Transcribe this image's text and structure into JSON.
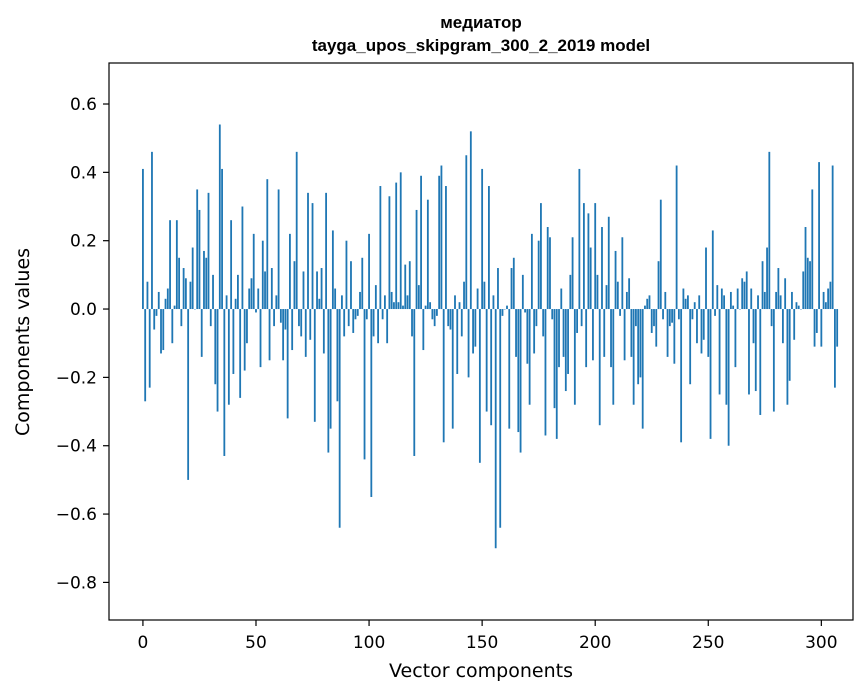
{
  "chart_data": {
    "type": "bar",
    "title_line1": "медиатор",
    "title_line2": "tayga_upos_skipgram_300_2_2019 model",
    "xlabel": "Vector components",
    "ylabel": "Components values",
    "xlim": [
      -15,
      314
    ],
    "ylim": [
      -0.91,
      0.72
    ],
    "xticks": [
      0,
      50,
      100,
      150,
      200,
      250,
      300
    ],
    "xtick_labels": [
      "0",
      "50",
      "100",
      "150",
      "200",
      "250",
      "300"
    ],
    "yticks": [
      -0.8,
      -0.6,
      -0.4,
      -0.2,
      0.0,
      0.2,
      0.4,
      0.6
    ],
    "ytick_labels": [
      "−0.8",
      "−0.6",
      "−0.4",
      "−0.2",
      "0.0",
      "0.2",
      "0.4",
      "0.6"
    ],
    "bar_color": "#1f77b4",
    "grid": false,
    "values": [
      0.41,
      -0.27,
      0.08,
      -0.23,
      0.46,
      -0.06,
      -0.02,
      0.05,
      -0.13,
      -0.12,
      0.03,
      0.06,
      0.26,
      -0.1,
      0.01,
      0.26,
      0.15,
      -0.05,
      0.12,
      0.09,
      -0.5,
      0.08,
      0.18,
      0.0,
      0.35,
      0.29,
      -0.14,
      0.17,
      0.15,
      0.34,
      -0.05,
      0.1,
      -0.22,
      -0.3,
      0.54,
      0.41,
      -0.43,
      0.04,
      -0.28,
      0.26,
      -0.19,
      0.03,
      0.1,
      -0.26,
      0.3,
      -0.18,
      -0.1,
      0.06,
      0.09,
      0.22,
      -0.01,
      0.06,
      -0.17,
      0.2,
      0.11,
      0.38,
      -0.15,
      0.12,
      -0.05,
      0.04,
      0.35,
      -0.04,
      -0.15,
      -0.06,
      -0.32,
      0.22,
      -0.12,
      0.14,
      0.46,
      -0.05,
      -0.08,
      0.11,
      -0.14,
      0.34,
      -0.09,
      0.31,
      -0.33,
      0.11,
      0.03,
      0.12,
      -0.13,
      0.34,
      -0.42,
      -0.35,
      0.23,
      0.06,
      -0.27,
      -0.64,
      0.04,
      -0.08,
      0.2,
      -0.05,
      0.14,
      -0.07,
      -0.03,
      -0.02,
      0.05,
      0.15,
      -0.44,
      -0.03,
      0.22,
      -0.55,
      -0.08,
      0.07,
      -0.1,
      0.36,
      -0.03,
      0.04,
      -0.1,
      0.33,
      0.05,
      0.02,
      0.37,
      0.02,
      0.4,
      0.01,
      0.13,
      0.04,
      0.14,
      -0.08,
      -0.43,
      0.29,
      0.07,
      0.39,
      -0.12,
      0.01,
      0.32,
      0.02,
      -0.03,
      -0.05,
      -0.02,
      0.39,
      0.42,
      -0.39,
      0.36,
      -0.05,
      -0.06,
      -0.35,
      0.04,
      -0.19,
      0.02,
      -0.08,
      0.08,
      0.45,
      -0.2,
      0.52,
      -0.13,
      -0.11,
      0.06,
      -0.45,
      0.41,
      0.08,
      -0.3,
      0.36,
      -0.34,
      0.04,
      -0.7,
      0.12,
      -0.64,
      -0.02,
      0.0,
      0.01,
      -0.35,
      0.12,
      0.15,
      -0.14,
      -0.36,
      -0.42,
      0.1,
      -0.01,
      -0.16,
      -0.28,
      0.22,
      -0.13,
      -0.05,
      0.2,
      0.31,
      -0.08,
      -0.37,
      0.24,
      0.21,
      -0.03,
      -0.29,
      -0.38,
      -0.17,
      0.06,
      -0.14,
      -0.24,
      -0.19,
      0.1,
      0.21,
      -0.28,
      -0.07,
      0.41,
      -0.05,
      0.31,
      -0.17,
      0.28,
      0.18,
      -0.15,
      0.31,
      0.1,
      -0.34,
      0.24,
      -0.14,
      0.07,
      0.27,
      -0.17,
      -0.28,
      0.17,
      0.08,
      -0.02,
      0.21,
      -0.15,
      0.05,
      0.09,
      -0.14,
      -0.28,
      -0.05,
      -0.22,
      -0.2,
      -0.35,
      0.01,
      0.03,
      0.04,
      -0.07,
      -0.05,
      -0.11,
      0.14,
      0.32,
      -0.03,
      0.05,
      -0.14,
      -0.05,
      -0.04,
      -0.16,
      0.42,
      -0.03,
      -0.39,
      0.06,
      0.03,
      0.04,
      -0.22,
      -0.03,
      0.02,
      -0.1,
      0.04,
      -0.13,
      -0.09,
      0.18,
      -0.14,
      -0.38,
      0.23,
      -0.02,
      0.07,
      -0.25,
      0.06,
      0.04,
      -0.28,
      -0.4,
      0.05,
      0.01,
      -0.17,
      0.06,
      0.0,
      0.09,
      0.08,
      0.11,
      -0.25,
      0.06,
      -0.1,
      -0.24,
      0.04,
      -0.31,
      0.14,
      0.05,
      0.18,
      0.46,
      -0.05,
      -0.3,
      0.05,
      0.12,
      0.04,
      -0.1,
      0.09,
      -0.28,
      -0.21,
      0.05,
      -0.09,
      0.02,
      0.01,
      0.0,
      0.11,
      0.24,
      0.15,
      0.14,
      0.35,
      -0.11,
      -0.07,
      0.43,
      -0.11,
      0.05,
      0.02,
      0.06,
      0.08,
      0.42,
      -0.23,
      -0.11
    ]
  }
}
